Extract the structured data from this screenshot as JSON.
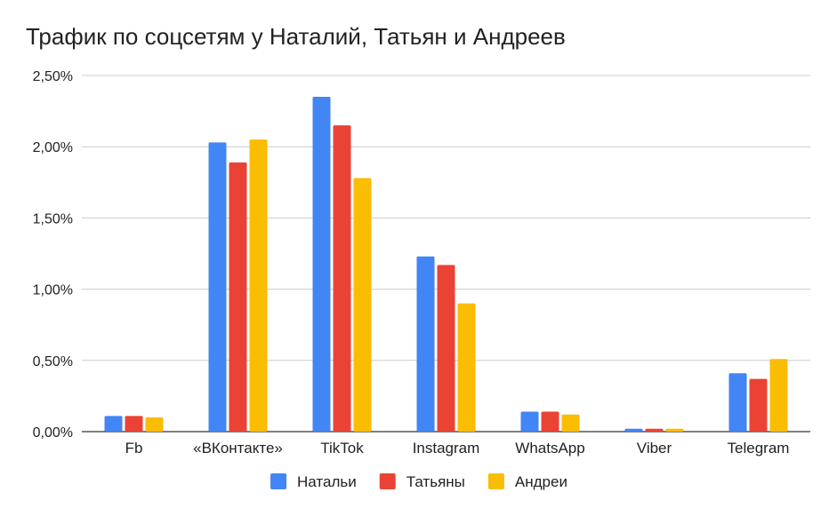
{
  "chart_data": {
    "type": "bar",
    "title": "Трафик по соцсетям у Наталий, Татьян и Андреев",
    "xlabel": "",
    "ylabel": "",
    "categories": [
      "Fb",
      "«ВКонтакте»",
      "TikTok",
      "Instagram",
      "WhatsApp",
      "Viber",
      "Telegram"
    ],
    "series": [
      {
        "name": "Натальи",
        "color": "#4285F4",
        "values": [
          0.11,
          2.03,
          2.35,
          1.23,
          0.14,
          0.02,
          0.41
        ]
      },
      {
        "name": "Татьяны",
        "color": "#EA4335",
        "values": [
          0.11,
          1.89,
          2.15,
          1.17,
          0.14,
          0.02,
          0.37
        ]
      },
      {
        "name": "Андреи",
        "color": "#FBBC04",
        "values": [
          0.1,
          2.05,
          1.78,
          0.9,
          0.12,
          0.02,
          0.51
        ]
      }
    ],
    "ylim": [
      0,
      2.5
    ],
    "yticks": [
      "0,00%",
      "0,50%",
      "1,00%",
      "1,50%",
      "2,00%",
      "2,50%"
    ],
    "legend_position": "bottom",
    "grid": true
  }
}
